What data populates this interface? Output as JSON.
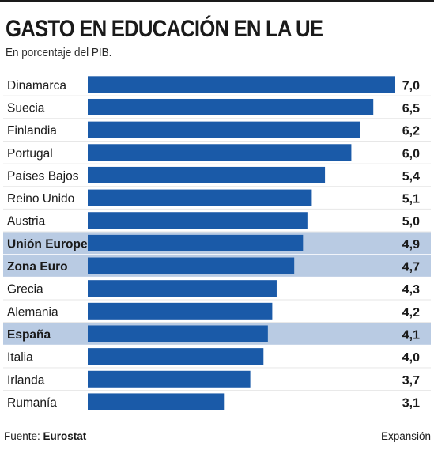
{
  "header": {
    "title": "GASTO EN EDUCACIÓN EN LA UE",
    "subtitle": "En porcentaje del PIB."
  },
  "footer": {
    "source_prefix": "Fuente: ",
    "source_name": "Eurostat",
    "brand": "Expansión"
  },
  "colors": {
    "bar": "#1a5aa8",
    "highlight_row": "#b9cbe3",
    "stripe": "#e6e6e6"
  },
  "chart_data": {
    "type": "bar",
    "orientation": "horizontal",
    "title": "GASTO EN EDUCACIÓN EN LA UE",
    "subtitle": "En porcentaje del PIB.",
    "categories": [
      "Dinamarca",
      "Suecia",
      "Finlandia",
      "Portugal",
      "Países Bajos",
      "Reino Unido",
      "Austria",
      "Unión Europea",
      "Zona Euro",
      "Grecia",
      "Alemania",
      "España",
      "Italia",
      "Irlanda",
      "Rumanía"
    ],
    "values": [
      7.0,
      6.5,
      6.2,
      6.0,
      5.4,
      5.1,
      5.0,
      4.9,
      4.7,
      4.3,
      4.2,
      4.1,
      4.0,
      3.7,
      3.1
    ],
    "value_labels": [
      "7,0",
      "6,5",
      "6,2",
      "6,0",
      "5,4",
      "5,1",
      "5,0",
      "4,9",
      "4,7",
      "4,3",
      "4,2",
      "4,1",
      "4,0",
      "3,7",
      "3,1"
    ],
    "highlighted": [
      "Unión Europea",
      "Zona Euro",
      "España"
    ],
    "xlim": [
      0,
      7.0
    ],
    "grid": false,
    "legend": "none"
  }
}
